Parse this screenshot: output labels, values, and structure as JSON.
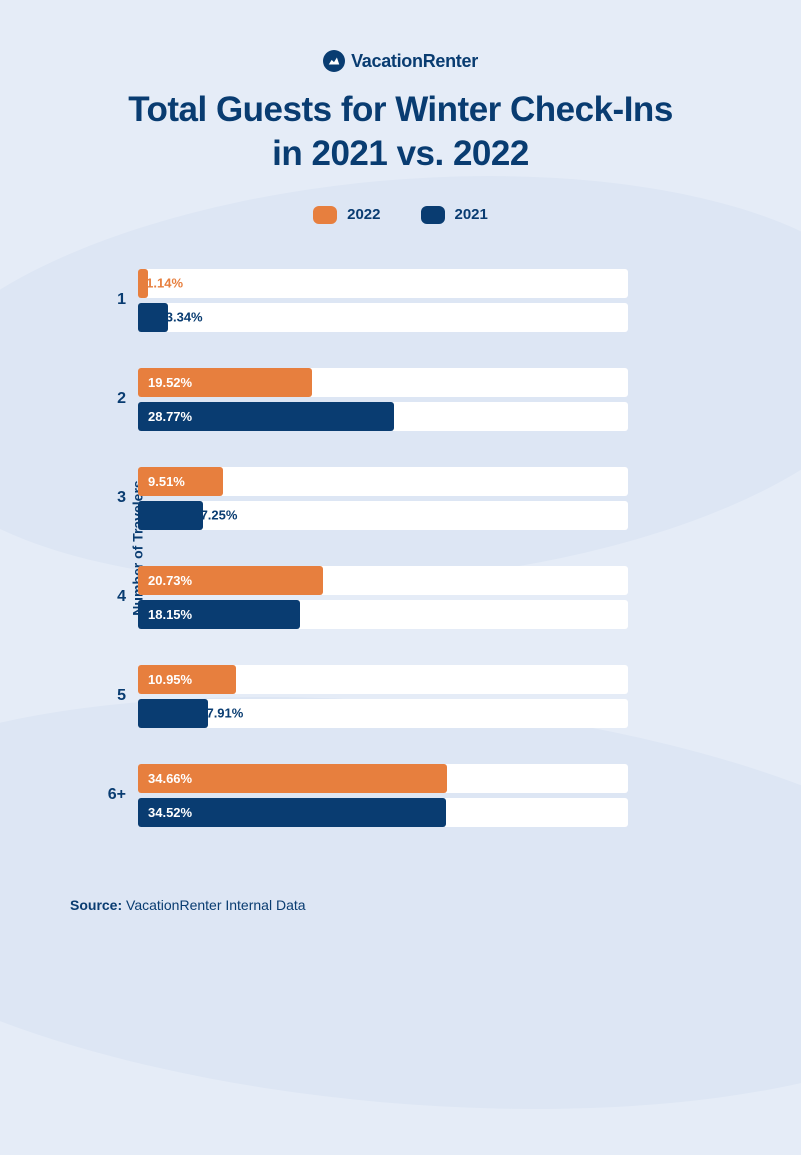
{
  "logo_text": "VacationRenter",
  "title_line1": "Total Guests for Winter Check-Ins",
  "title_line2": "in 2021 vs. 2022",
  "y_axis_label": "Number of Travelers",
  "source_label": "Source:",
  "source_text": " VacationRenter Internal Data",
  "background_color": "#e5ecf7",
  "wave_color": "#dde6f4",
  "text_color": "#093c71",
  "bar_track_color": "#ffffff",
  "legend": [
    {
      "label": "2022",
      "color": "#e77f3e"
    },
    {
      "label": "2021",
      "color": "#093c71"
    }
  ],
  "chart": {
    "type": "bar",
    "orientation": "horizontal",
    "max_value": 55,
    "categories": [
      {
        "label": "1",
        "bars": [
          {
            "value": 1.14,
            "label": "1.14%",
            "color": "#e77f3e",
            "label_outside": true,
            "label_color": "#e77f3e"
          },
          {
            "value": 3.34,
            "label": "3.34%",
            "color": "#093c71",
            "label_outside": true,
            "label_color": "#093c71"
          }
        ]
      },
      {
        "label": "2",
        "bars": [
          {
            "value": 19.52,
            "label": "19.52%",
            "color": "#e77f3e",
            "label_outside": false
          },
          {
            "value": 28.77,
            "label": "28.77%",
            "color": "#093c71",
            "label_outside": false
          }
        ]
      },
      {
        "label": "3",
        "bars": [
          {
            "value": 9.51,
            "label": "9.51%",
            "color": "#e77f3e",
            "label_outside": false
          },
          {
            "value": 7.25,
            "label": "7.25%",
            "color": "#093c71",
            "label_outside": true,
            "label_color": "#093c71"
          }
        ]
      },
      {
        "label": "4",
        "bars": [
          {
            "value": 20.73,
            "label": "20.73%",
            "color": "#e77f3e",
            "label_outside": false
          },
          {
            "value": 18.15,
            "label": "18.15%",
            "color": "#093c71",
            "label_outside": false
          }
        ]
      },
      {
        "label": "5",
        "bars": [
          {
            "value": 10.95,
            "label": "10.95%",
            "color": "#e77f3e",
            "label_outside": false
          },
          {
            "value": 7.91,
            "label": "7.91%",
            "color": "#093c71",
            "label_outside": true,
            "label_color": "#093c71"
          }
        ]
      },
      {
        "label": "6+",
        "bars": [
          {
            "value": 34.66,
            "label": "34.66%",
            "color": "#e77f3e",
            "label_outside": false
          },
          {
            "value": 34.52,
            "label": "34.52%",
            "color": "#093c71",
            "label_outside": false
          }
        ]
      }
    ]
  }
}
